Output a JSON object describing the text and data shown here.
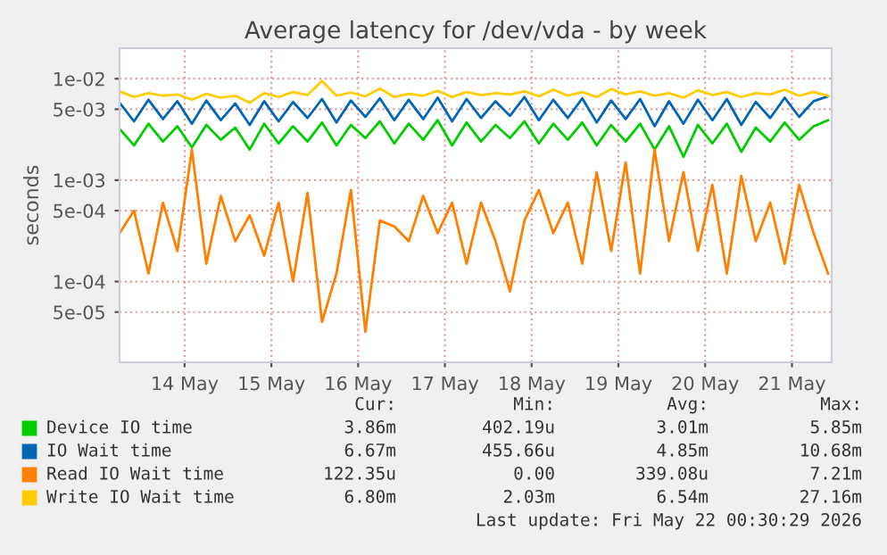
{
  "chart_data": {
    "type": "line",
    "title": "Average latency for /dev/vda - by week",
    "ylabel": "seconds",
    "log": "y",
    "x": [
      "2026-05-13T06:00",
      "2026-05-13T10:00",
      "2026-05-13T14:00",
      "2026-05-13T18:00",
      "2026-05-13T22:00",
      "2026-05-14T02:00",
      "2026-05-14T06:00",
      "2026-05-14T10:00",
      "2026-05-14T14:00",
      "2026-05-14T18:00",
      "2026-05-14T22:00",
      "2026-05-15T02:00",
      "2026-05-15T06:00",
      "2026-05-15T10:00",
      "2026-05-15T14:00",
      "2026-05-15T18:00",
      "2026-05-15T22:00",
      "2026-05-16T02:00",
      "2026-05-16T06:00",
      "2026-05-16T10:00",
      "2026-05-16T14:00",
      "2026-05-16T18:00",
      "2026-05-16T22:00",
      "2026-05-17T02:00",
      "2026-05-17T06:00",
      "2026-05-17T10:00",
      "2026-05-17T14:00",
      "2026-05-17T18:00",
      "2026-05-17T22:00",
      "2026-05-18T02:00",
      "2026-05-18T06:00",
      "2026-05-18T10:00",
      "2026-05-18T14:00",
      "2026-05-18T18:00",
      "2026-05-18T22:00",
      "2026-05-19T02:00",
      "2026-05-19T06:00",
      "2026-05-19T10:00",
      "2026-05-19T14:00",
      "2026-05-19T18:00",
      "2026-05-19T22:00",
      "2026-05-20T02:00",
      "2026-05-20T06:00",
      "2026-05-20T10:00",
      "2026-05-20T14:00",
      "2026-05-20T18:00",
      "2026-05-20T22:00",
      "2026-05-21T02:00",
      "2026-05-21T06:00",
      "2026-05-21T10:00"
    ],
    "series": [
      {
        "name": "Device IO time",
        "color": "#00cc00",
        "values": [
          0.0032,
          0.0022,
          0.0036,
          0.0024,
          0.0034,
          0.0021,
          0.0035,
          0.0025,
          0.0033,
          0.002,
          0.0036,
          0.0023,
          0.0034,
          0.0024,
          0.0037,
          0.0022,
          0.0035,
          0.0026,
          0.0038,
          0.0023,
          0.0036,
          0.0025,
          0.0039,
          0.0022,
          0.0037,
          0.0024,
          0.0035,
          0.0026,
          0.0038,
          0.0023,
          0.0036,
          0.0025,
          0.0037,
          0.0022,
          0.0035,
          0.0024,
          0.0036,
          0.002,
          0.0034,
          0.0017,
          0.0035,
          0.0023,
          0.0036,
          0.0019,
          0.0033,
          0.0024,
          0.0037,
          0.0025,
          0.0034,
          0.0039
        ]
      },
      {
        "name": "IO Wait time",
        "color": "#0066b3",
        "values": [
          0.0058,
          0.0038,
          0.0062,
          0.004,
          0.006,
          0.0036,
          0.0061,
          0.0039,
          0.0057,
          0.0035,
          0.006,
          0.0038,
          0.0059,
          0.0041,
          0.0063,
          0.0037,
          0.0061,
          0.0042,
          0.0064,
          0.0039,
          0.0062,
          0.004,
          0.0065,
          0.0038,
          0.0063,
          0.0041,
          0.006,
          0.0043,
          0.0066,
          0.0039,
          0.0062,
          0.0041,
          0.0064,
          0.0037,
          0.0061,
          0.004,
          0.0063,
          0.0034,
          0.006,
          0.0036,
          0.0062,
          0.0039,
          0.0063,
          0.0035,
          0.0059,
          0.0041,
          0.0065,
          0.0042,
          0.006,
          0.0067
        ]
      },
      {
        "name": "Read IO Wait time",
        "color": "#ff8000",
        "values": [
          0.0003,
          0.0005,
          0.00012,
          0.0006,
          0.0002,
          0.002,
          0.00015,
          0.0007,
          0.00025,
          0.00045,
          0.00018,
          0.0006,
          0.0001,
          0.00075,
          4e-05,
          0.00012,
          0.0008,
          3.2e-05,
          0.0004,
          0.00035,
          0.00025,
          0.0007,
          0.0003,
          0.0006,
          0.00015,
          0.0006,
          0.00025,
          8e-05,
          0.0004,
          0.0008,
          0.0003,
          0.0006,
          0.00015,
          0.0012,
          0.0002,
          0.0015,
          0.00012,
          0.002,
          0.00025,
          0.0012,
          0.0002,
          0.0009,
          0.00012,
          0.0011,
          0.00025,
          0.0006,
          0.00015,
          0.0009,
          0.0003,
          0.00012
        ]
      },
      {
        "name": "Write IO Wait time",
        "color": "#ffcc00",
        "values": [
          0.0075,
          0.0066,
          0.0072,
          0.0068,
          0.007,
          0.0062,
          0.0071,
          0.0065,
          0.0068,
          0.0058,
          0.0072,
          0.0066,
          0.0074,
          0.0069,
          0.0095,
          0.0068,
          0.0073,
          0.0067,
          0.008,
          0.0066,
          0.0071,
          0.0068,
          0.0076,
          0.0066,
          0.0074,
          0.0069,
          0.0072,
          0.007,
          0.0075,
          0.0067,
          0.0078,
          0.0068,
          0.0074,
          0.0066,
          0.0079,
          0.007,
          0.0075,
          0.0068,
          0.0072,
          0.0065,
          0.0077,
          0.0069,
          0.0074,
          0.0066,
          0.0072,
          0.007,
          0.0078,
          0.0068,
          0.0074,
          0.0068
        ]
      }
    ],
    "xlim": [
      "2026-05-13T06:00",
      "2026-05-21T11:00"
    ],
    "xticks": [
      {
        "value": "2026-05-14",
        "label": "14 May"
      },
      {
        "value": "2026-05-15",
        "label": "15 May"
      },
      {
        "value": "2026-05-16",
        "label": "16 May"
      },
      {
        "value": "2026-05-17",
        "label": "17 May"
      },
      {
        "value": "2026-05-18",
        "label": "18 May"
      },
      {
        "value": "2026-05-19",
        "label": "19 May"
      },
      {
        "value": "2026-05-20",
        "label": "20 May"
      },
      {
        "value": "2026-05-21",
        "label": "21 May"
      }
    ],
    "ylim": [
      1.6e-05,
      0.02
    ],
    "yticks": [
      {
        "value": 0.01,
        "label": "1e-02"
      },
      {
        "value": 0.005,
        "label": "5e-03"
      },
      {
        "value": 0.001,
        "label": "1e-03"
      },
      {
        "value": 0.0005,
        "label": "5e-04"
      },
      {
        "value": 0.0001,
        "label": "1e-04"
      },
      {
        "value": 5e-05,
        "label": "5e-05"
      }
    ],
    "grid": true,
    "legend": "bottom",
    "marker": "none",
    "line_style": "solid",
    "annotations": [
      "Cur:",
      "Min:",
      "Avg:",
      "Max:",
      "3.86m",
      "402.19u",
      "3.01m",
      "5.85m",
      "6.67m",
      "455.66u",
      "4.85m",
      "10.68m",
      "122.35u",
      "0.00",
      "339.08u",
      "7.21m",
      "6.80m",
      "2.03m",
      "6.54m",
      "27.16m",
      "Last update: Fri May 22 00:30:29 2026"
    ]
  }
}
